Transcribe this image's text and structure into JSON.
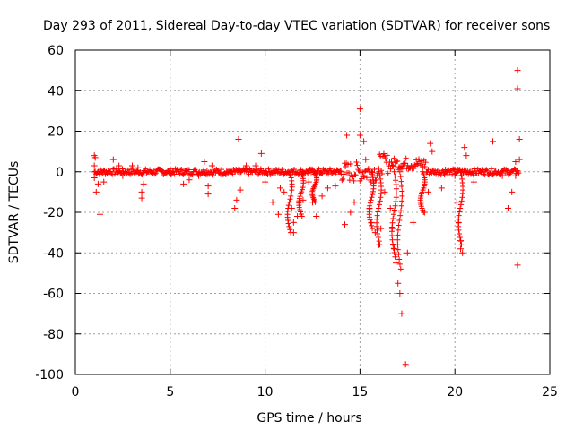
{
  "chart_data": {
    "type": "scatter",
    "title": "Day 293 of 2011, Sidereal Day-to-day VTEC variation (SDTVAR) for receiver sons",
    "xlabel": "GPS time / hours",
    "ylabel": "SDTVAR / TECUs",
    "xlim": [
      0,
      25
    ],
    "ylim": [
      -100,
      60
    ],
    "grid": true,
    "marker": "+",
    "color": "#ff0000",
    "x_ticks": [
      "0",
      "5",
      "10",
      "15",
      "20",
      "25"
    ],
    "y_ticks": [
      "60",
      "40",
      "20",
      "0",
      "-20",
      "-40",
      "-60",
      "-80",
      "-100"
    ],
    "series": [
      {
        "name": "SDTVAR",
        "points": [
          [
            1.0,
            8
          ],
          [
            1.05,
            7
          ],
          [
            1.0,
            3
          ],
          [
            1.0,
            -3
          ],
          [
            1.1,
            -10
          ],
          [
            1.3,
            -21
          ],
          [
            1.2,
            -6
          ],
          [
            1.5,
            -5
          ],
          [
            2.0,
            6
          ],
          [
            2.3,
            3
          ],
          [
            2.5,
            -2
          ],
          [
            3.0,
            3
          ],
          [
            3.5,
            -13
          ],
          [
            3.5,
            -10
          ],
          [
            3.6,
            -6
          ],
          [
            3.3,
            2
          ],
          [
            4.5,
            1
          ],
          [
            5.0,
            -1
          ],
          [
            5.7,
            -6
          ],
          [
            6.0,
            -4
          ],
          [
            6.5,
            -2
          ],
          [
            6.8,
            5
          ],
          [
            7.0,
            -11
          ],
          [
            7.0,
            -7
          ],
          [
            7.2,
            3
          ],
          [
            8.4,
            -18
          ],
          [
            8.5,
            -14
          ],
          [
            8.6,
            16
          ],
          [
            8.7,
            -9
          ],
          [
            9.0,
            3
          ],
          [
            9.5,
            3
          ],
          [
            9.8,
            9
          ],
          [
            10.0,
            -5
          ],
          [
            10.4,
            -15
          ],
          [
            10.7,
            -21
          ],
          [
            10.8,
            -8
          ],
          [
            11.0,
            -10
          ],
          [
            11.4,
            -18
          ],
          [
            11.5,
            -25
          ],
          [
            11.5,
            -30
          ],
          [
            11.7,
            -22
          ],
          [
            12.0,
            -14
          ],
          [
            12.3,
            -5
          ],
          [
            12.5,
            -15
          ],
          [
            12.7,
            -22
          ],
          [
            13.0,
            -12
          ],
          [
            13.3,
            -8
          ],
          [
            13.7,
            -7
          ],
          [
            14.0,
            0
          ],
          [
            14.2,
            -26
          ],
          [
            14.3,
            18
          ],
          [
            14.5,
            -20
          ],
          [
            14.7,
            -15
          ],
          [
            15.0,
            31
          ],
          [
            15.0,
            18
          ],
          [
            15.2,
            15
          ],
          [
            15.3,
            6
          ],
          [
            15.5,
            -18
          ],
          [
            15.6,
            -25
          ],
          [
            15.8,
            -30
          ],
          [
            16.0,
            -36
          ],
          [
            16.1,
            -28
          ],
          [
            16.3,
            -10
          ],
          [
            16.6,
            -18
          ],
          [
            16.7,
            -28
          ],
          [
            16.8,
            -38
          ],
          [
            16.9,
            -45
          ],
          [
            17.0,
            -55
          ],
          [
            17.1,
            -60
          ],
          [
            17.2,
            -70
          ],
          [
            17.4,
            -95
          ],
          [
            17.5,
            -40
          ],
          [
            17.8,
            -25
          ],
          [
            18.2,
            -15
          ],
          [
            18.4,
            -20
          ],
          [
            18.6,
            -10
          ],
          [
            18.7,
            14
          ],
          [
            18.8,
            10
          ],
          [
            19.3,
            -8
          ],
          [
            19.5,
            1
          ],
          [
            20.0,
            -2
          ],
          [
            20.1,
            -15
          ],
          [
            20.2,
            -25
          ],
          [
            20.3,
            -34
          ],
          [
            20.3,
            -38
          ],
          [
            20.4,
            -40
          ],
          [
            20.5,
            12
          ],
          [
            20.6,
            8
          ],
          [
            20.8,
            0
          ],
          [
            21.0,
            -5
          ],
          [
            21.5,
            0
          ],
          [
            22.0,
            15
          ],
          [
            22.5,
            -2
          ],
          [
            22.8,
            -18
          ],
          [
            23.0,
            -10
          ],
          [
            23.2,
            -2
          ],
          [
            23.2,
            5
          ],
          [
            23.3,
            50
          ],
          [
            23.3,
            41
          ],
          [
            23.3,
            -46
          ],
          [
            23.4,
            16
          ],
          [
            23.4,
            6
          ]
        ]
      }
    ]
  }
}
